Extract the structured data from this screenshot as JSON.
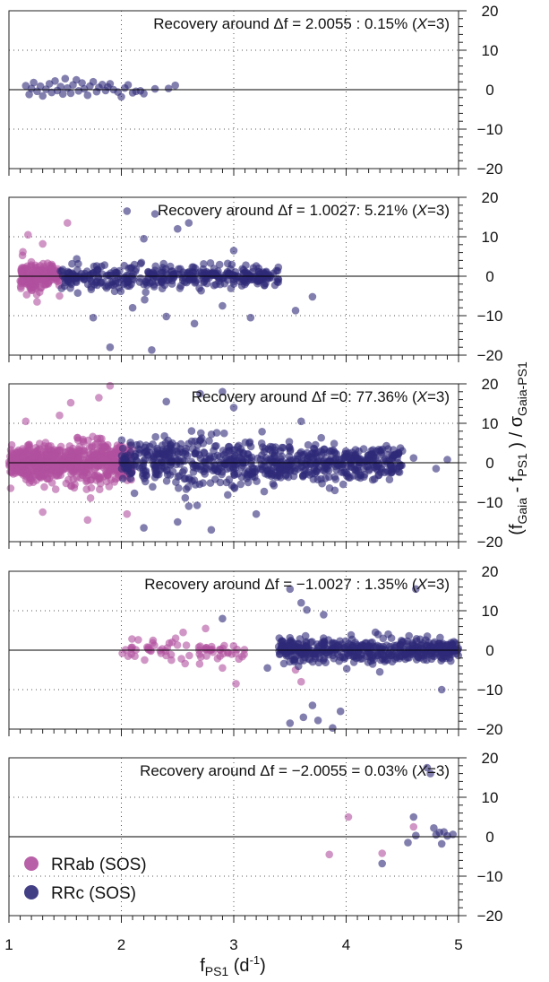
{
  "chart_data": {
    "type": "scatter",
    "x_axis": {
      "ticks": [
        "1",
        "2",
        "3",
        "4",
        "5"
      ],
      "range": [
        1,
        5
      ],
      "minor_step": 0.1
    },
    "y_axis": {
      "ticks": [
        "20",
        "10",
        "0",
        "−10",
        "−20"
      ],
      "range": [
        -20,
        20
      ],
      "minor_step": 2
    },
    "grid": "dotted",
    "legend": {
      "placement": "bottom-left of bottom panel",
      "entries": [
        {
          "label": "RRab (SOS)",
          "color": "#b0509e"
        },
        {
          "label": "RRc   (SOS)",
          "color": "#2e2a78"
        }
      ]
    },
    "colors": {
      "rrab": "#b0509e",
      "rrc": "#2e2a78"
    },
    "panels": [
      {
        "title": "Recovery around Δf = 2.0055 : 0.15% (",
        "title_x": "X",
        "title_tail": "=3)",
        "series": [
          {
            "class": "rrc",
            "points": [
              [
                1.15,
                1.0
              ],
              [
                1.18,
                -1.2
              ],
              [
                1.2,
                0.3
              ],
              [
                1.22,
                1.8
              ],
              [
                1.25,
                -0.4
              ],
              [
                1.28,
                0.9
              ],
              [
                1.3,
                -1.6
              ],
              [
                1.33,
                0.1
              ],
              [
                1.36,
                1.5
              ],
              [
                1.38,
                -0.7
              ],
              [
                1.41,
                2.2
              ],
              [
                1.43,
                -0.2
              ],
              [
                1.46,
                0.8
              ],
              [
                1.48,
                -1.1
              ],
              [
                1.5,
                2.8
              ],
              [
                1.52,
                0.4
              ],
              [
                1.55,
                -0.9
              ],
              [
                1.57,
                1.2
              ],
              [
                1.6,
                2.5
              ],
              [
                1.62,
                -0.3
              ],
              [
                1.65,
                1.7
              ],
              [
                1.67,
                0.2
              ],
              [
                1.7,
                -1.4
              ],
              [
                1.72,
                0.9
              ],
              [
                1.75,
                2.0
              ],
              [
                1.78,
                -0.5
              ],
              [
                1.8,
                0.6
              ],
              [
                1.83,
                1.3
              ],
              [
                1.86,
                -0.2
              ],
              [
                1.88,
                0.7
              ],
              [
                1.9,
                1.5
              ],
              [
                1.93,
                0.0
              ],
              [
                1.97,
                -0.6
              ],
              [
                2.0,
                -1.8
              ],
              [
                2.03,
                0.4
              ],
              [
                2.06,
                1.2
              ],
              [
                2.1,
                -0.8
              ],
              [
                2.13,
                -0.4
              ],
              [
                2.17,
                -0.3
              ],
              [
                2.2,
                -1.0
              ],
              [
                2.3,
                0.2
              ],
              [
                2.42,
                0.3
              ],
              [
                2.48,
                1.1
              ]
            ]
          }
        ]
      },
      {
        "title": "Recovery around Δf = 1.0027: 5.21% (",
        "title_x": "X",
        "title_tail": "=3)",
        "series": [
          {
            "class": "rrab",
            "gen": {
              "n": 180,
              "x": [
                1.1,
                1.45
              ],
              "spread": 3.2,
              "seed": 11,
              "peak": 1.2
            },
            "outliers": [
              [
                1.17,
                10.5
              ],
              [
                1.52,
                13.5
              ],
              [
                1.2,
                -3.5
              ],
              [
                1.3,
                8.2
              ],
              [
                1.45,
                -5.0
              ],
              [
                1.25,
                -6.5
              ]
            ]
          },
          {
            "class": "rrc",
            "gen": {
              "n": 380,
              "x": [
                1.45,
                3.4
              ],
              "spread": 2.8,
              "seed": 23,
              "peak": 2.0
            },
            "outliers": [
              [
                1.75,
                -10.5
              ],
              [
                2.1,
                -8.0
              ],
              [
                2.4,
                -10.2
              ],
              [
                2.65,
                -12.0
              ],
              [
                2.5,
                12.0
              ],
              [
                2.3,
                15.8
              ],
              [
                2.6,
                13.5
              ],
              [
                1.9,
                -18.0
              ],
              [
                2.27,
                -18.7
              ],
              [
                2.05,
                16.5
              ],
              [
                3.15,
                -10.5
              ],
              [
                3.7,
                -5.2
              ],
              [
                3.55,
                -8.7
              ],
              [
                2.9,
                -7.5
              ],
              [
                3.0,
                6.5
              ],
              [
                2.2,
                9.5
              ]
            ]
          }
        ]
      },
      {
        "title": "Recovery around Δf =0: 77.36% (",
        "title_x": "X",
        "title_tail": "=3)",
        "series": [
          {
            "class": "rrab",
            "gen": {
              "n": 650,
              "x": [
                1.0,
                2.1
              ],
              "spread": 4.8,
              "seed": 31,
              "peak": 1.7
            },
            "outliers": [
              [
                1.15,
                10.5
              ],
              [
                1.3,
                -12.5
              ],
              [
                1.55,
                15.2
              ],
              [
                1.7,
                -14.5
              ],
              [
                1.9,
                19.5
              ],
              [
                1.8,
                16.5
              ],
              [
                2.05,
                -13.0
              ],
              [
                1.45,
                12.0
              ]
            ]
          },
          {
            "class": "rrc",
            "gen": {
              "n": 720,
              "x": [
                2.0,
                4.5
              ],
              "spread": 5.2,
              "seed": 47,
              "peak": 2.6
            },
            "outliers": [
              [
                2.2,
                -16.5
              ],
              [
                2.5,
                -15.0
              ],
              [
                2.7,
                17.5
              ],
              [
                2.8,
                -17.0
              ],
              [
                2.4,
                15.5
              ],
              [
                3.0,
                14.0
              ],
              [
                3.2,
                -13.0
              ],
              [
                2.9,
                18.0
              ],
              [
                3.6,
                10.5
              ],
              [
                3.9,
                -7.0
              ],
              [
                4.5,
                3.0
              ],
              [
                4.8,
                -1.5
              ],
              [
                4.9,
                0.8
              ],
              [
                4.6,
                1.2
              ],
              [
                2.6,
                -11.0
              ]
            ]
          }
        ]
      },
      {
        "title": "Recovery around Δf = −1.0027 : 1.35% (",
        "title_x": "X",
        "title_tail": "=3)",
        "series": [
          {
            "class": "rrab",
            "gen": {
              "n": 70,
              "x": [
                2.0,
                3.1
              ],
              "spread": 2.5,
              "seed": 53,
              "peak": 2.4
            },
            "outliers": [
              [
                2.75,
                5.5
              ],
              [
                2.55,
                4.5
              ],
              [
                3.02,
                -8.5
              ],
              [
                2.9,
                -4.5
              ],
              [
                3.6,
                -8.0
              ],
              [
                3.55,
                -5.0
              ]
            ]
          },
          {
            "class": "rrc",
            "gen": {
              "n": 460,
              "x": [
                3.4,
                5.0
              ],
              "spread": 2.6,
              "seed": 67,
              "peak": 4.2
            },
            "outliers": [
              [
                3.5,
                -18.5
              ],
              [
                3.6,
                12.0
              ],
              [
                3.5,
                15.5
              ],
              [
                3.7,
                -14.0
              ],
              [
                3.75,
                -17.8
              ],
              [
                3.62,
                -17.0
              ],
              [
                3.95,
                -15.5
              ],
              [
                3.88,
                -19.7
              ],
              [
                4.62,
                15.5
              ],
              [
                4.85,
                -10.0
              ],
              [
                3.65,
                10.2
              ],
              [
                3.3,
                -4.5
              ],
              [
                4.3,
                -5.5
              ],
              [
                3.8,
                9.0
              ],
              [
                2.9,
                8.0
              ]
            ]
          }
        ]
      },
      {
        "title": "Recovery around Δf = −2.0055 = 0.03% (",
        "title_x": "X",
        "title_tail": "=3)",
        "series": [
          {
            "class": "rrab",
            "points": [
              [
                3.85,
                -4.5
              ],
              [
                4.02,
                5.0
              ],
              [
                4.32,
                -4.2
              ],
              [
                4.6,
                2.5
              ]
            ]
          },
          {
            "class": "rrc",
            "points": [
              [
                4.32,
                -6.8
              ],
              [
                4.55,
                -1.5
              ],
              [
                4.6,
                5.0
              ],
              [
                4.62,
                0.3
              ],
              [
                4.72,
                17.5
              ],
              [
                4.75,
                16.0
              ],
              [
                4.78,
                2.2
              ],
              [
                4.8,
                0.5
              ],
              [
                4.83,
                1.1
              ],
              [
                4.85,
                -1.8
              ],
              [
                4.87,
                1.2
              ],
              [
                4.9,
                0.2
              ],
              [
                4.95,
                0.6
              ]
            ]
          }
        ]
      }
    ]
  },
  "labels": {
    "x_label_base": "f",
    "x_label_sub": "PS1",
    "x_label_unit": " (d",
    "x_label_sup": "-1",
    "x_label_close": ")",
    "y_label_open": "(f",
    "y_label_sub1": "Gaia",
    "y_label_mid": " - f",
    "y_label_sub2": "PS1",
    "y_label_close": " )  /  σ",
    "y_label_sub3": "Gaia-PS1"
  }
}
